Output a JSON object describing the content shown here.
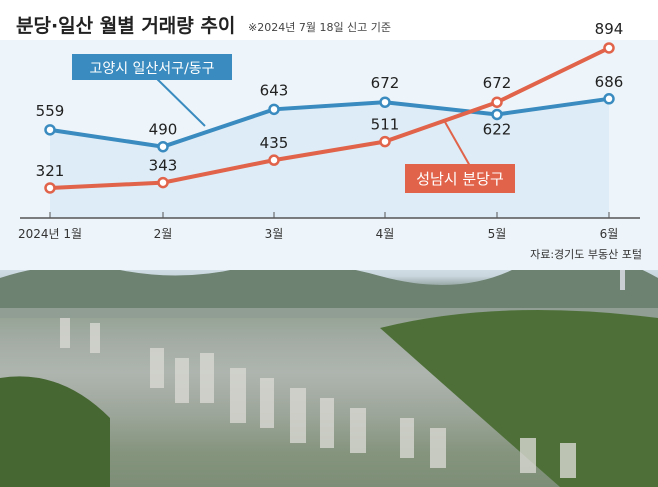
{
  "title": "분당·일산 월별 거래량 추이",
  "note": "※2024년 7월 18일 신고 기준",
  "source": "자료:경기도 부동산 포털",
  "chart_data": {
    "type": "line",
    "title": "분당·일산 월별 거래량 추이",
    "categories": [
      "2024년 1월",
      "2월",
      "3월",
      "4월",
      "5월",
      "6월"
    ],
    "series": [
      {
        "name": "고양시 일산서구/동구",
        "color": "#3a8bbf",
        "values": [
          559,
          490,
          643,
          672,
          622,
          686
        ]
      },
      {
        "name": "성남시 분당구",
        "color": "#e0634a",
        "values": [
          321,
          343,
          435,
          511,
          672,
          894
        ]
      }
    ],
    "ylim": [
      116,
      894
    ],
    "grid": false
  }
}
